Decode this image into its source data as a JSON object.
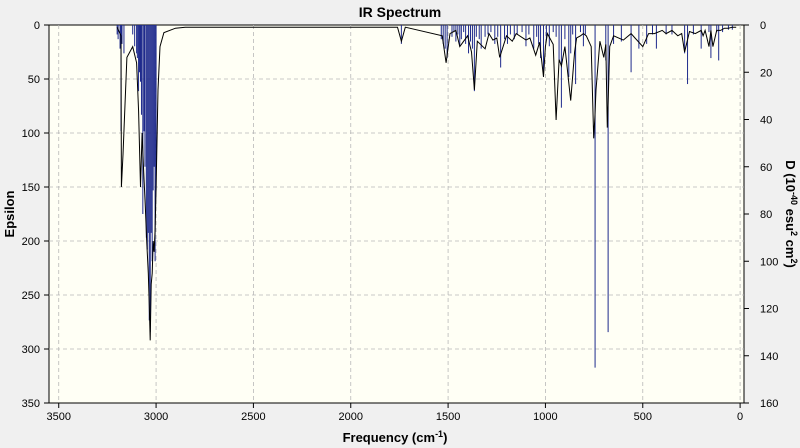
{
  "chart_data": {
    "type": "line",
    "title": "IR Spectrum",
    "xlabel": "Frequency",
    "xlabel_unit_base": "cm",
    "xlabel_unit_exp": "-1",
    "ylabel": "Epsilon",
    "y2label_parts": [
      "D (10",
      "-40",
      " esu",
      "2",
      " cm",
      "2",
      ")"
    ],
    "xlim": [
      3550,
      -20
    ],
    "ylim": [
      0,
      350
    ],
    "y2lim": [
      0,
      160
    ],
    "y_inverted": true,
    "grid": true,
    "x_ticks": [
      3500,
      3000,
      2500,
      2000,
      1500,
      1000,
      500,
      0
    ],
    "y_ticks": [
      0,
      50,
      100,
      150,
      200,
      250,
      300,
      350
    ],
    "y2_ticks": [
      0,
      20,
      40,
      60,
      80,
      100,
      120,
      140,
      160
    ],
    "colors": {
      "plot_bg": "#fffff5",
      "frame_bg": "#f0f0f0",
      "sticks": "#1e2a8c",
      "curve": "#000000"
    },
    "series": [
      {
        "name": "",
        "kind": "epsilon_curve",
        "x": [
          3200,
          3180,
          3178,
          3170,
          3150,
          3120,
          3100,
          3090,
          3080,
          3072,
          3065,
          3055,
          3048,
          3040,
          3035,
          3030,
          3025,
          3020,
          3015,
          3010,
          3005,
          3000,
          2990,
          2980,
          2960,
          2900,
          2850,
          2800,
          1760,
          1740,
          1720,
          1530,
          1510,
          1490,
          1460,
          1440,
          1400,
          1380,
          1365,
          1350,
          1310,
          1290,
          1270,
          1250,
          1235,
          1200,
          1170,
          1150,
          1100,
          1080,
          1050,
          1030,
          1010,
          1000,
          990,
          960,
          945,
          930,
          918,
          900,
          870,
          850,
          840,
          820,
          805,
          790,
          765,
          752,
          746,
          740,
          720,
          700,
          690,
          682,
          676,
          670,
          650,
          600,
          560,
          540,
          500,
          470,
          440,
          400,
          380,
          350,
          320,
          300,
          285,
          260,
          230,
          200,
          190,
          180,
          160,
          150,
          140,
          120,
          100,
          80,
          60,
          40,
          20
        ],
        "y": [
          2,
          10,
          150,
          120,
          30,
          20,
          35,
          80,
          150,
          100,
          130,
          170,
          200,
          230,
          260,
          292,
          240,
          230,
          200,
          210,
          190,
          150,
          60,
          20,
          7,
          3,
          2,
          2,
          2,
          15,
          2,
          10,
          35,
          8,
          5,
          20,
          10,
          25,
          60,
          15,
          22,
          8,
          14,
          12,
          30,
          10,
          15,
          8,
          14,
          12,
          28,
          16,
          48,
          20,
          8,
          18,
          88,
          32,
          38,
          20,
          70,
          25,
          12,
          10,
          8,
          10,
          20,
          105,
          85,
          60,
          15,
          30,
          18,
          95,
          60,
          20,
          10,
          14,
          8,
          12,
          20,
          8,
          8,
          5,
          8,
          5,
          10,
          8,
          25,
          6,
          8,
          5,
          10,
          5,
          20,
          5,
          20,
          5,
          5,
          3,
          3,
          2,
          2
        ]
      },
      {
        "name": "",
        "kind": "dipole_sticks",
        "x": [
          3200,
          3195,
          3185,
          3180,
          3175,
          3165,
          3120,
          3110,
          3100,
          3096,
          3090,
          3085,
          3080,
          3075,
          3068,
          3062,
          3057,
          3050,
          3045,
          3040,
          3035,
          3030,
          3025,
          3020,
          3015,
          3010,
          3005,
          3000,
          1740,
          1535,
          1525,
          1515,
          1505,
          1480,
          1470,
          1460,
          1450,
          1440,
          1432,
          1420,
          1410,
          1395,
          1385,
          1375,
          1365,
          1355,
          1340,
          1330,
          1310,
          1295,
          1280,
          1260,
          1245,
          1230,
          1210,
          1195,
          1180,
          1160,
          1145,
          1120,
          1100,
          1085,
          1060,
          1045,
          1035,
          1025,
          1010,
          995,
          980,
          960,
          945,
          930,
          918,
          900,
          880,
          870,
          860,
          845,
          820,
          805,
          795,
          745,
          690,
          678,
          650,
          610,
          560,
          520,
          480,
          450,
          430,
          380,
          350,
          285,
          270,
          240,
          200,
          160,
          150,
          120,
          110,
          90,
          60,
          40
        ],
        "y": [
          4,
          6,
          10,
          45,
          8,
          12,
          4,
          9,
          12,
          14,
          28,
          20,
          24,
          38,
          80,
          45,
          60,
          90,
          95,
          88,
          125,
          130,
          88,
          100,
          70,
          60,
          100,
          70,
          8,
          6,
          8,
          10,
          14,
          5,
          3,
          7,
          4,
          9,
          6,
          3,
          8,
          12,
          7,
          10,
          28,
          5,
          6,
          10,
          5,
          4,
          3,
          8,
          5,
          18,
          6,
          8,
          4,
          6,
          4,
          3,
          9,
          4,
          10,
          5,
          8,
          14,
          22,
          6,
          9,
          3,
          5,
          15,
          35,
          6,
          22,
          12,
          4,
          25,
          3,
          9,
          4,
          145,
          15,
          130,
          8,
          7,
          20,
          10,
          8,
          4,
          10,
          4,
          4,
          12,
          25,
          4,
          10,
          3,
          14,
          3,
          15,
          3,
          2,
          2
        ]
      }
    ]
  }
}
